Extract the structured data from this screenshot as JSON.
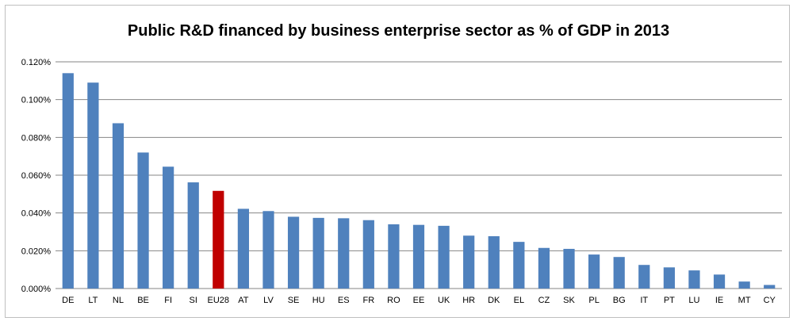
{
  "chart_data": {
    "type": "bar",
    "title": "Public R&D financed by business enterprise sector as % of GDP in 2013",
    "xlabel": "",
    "ylabel": "",
    "ylim": [
      0,
      0.12
    ],
    "yticks": [
      "0.000%",
      "0.020%",
      "0.040%",
      "0.060%",
      "0.080%",
      "0.100%",
      "0.120%"
    ],
    "grid": true,
    "legend": "none",
    "categories": [
      "DE",
      "LT",
      "NL",
      "BE",
      "FI",
      "SI",
      "EU28",
      "AT",
      "LV",
      "SE",
      "HU",
      "ES",
      "FR",
      "RO",
      "EE",
      "UK",
      "HR",
      "DK",
      "EL",
      "CZ",
      "SK",
      "PL",
      "BG",
      "IT",
      "PT",
      "LU",
      "IE",
      "MT",
      "CY"
    ],
    "values": [
      0.114,
      0.109,
      0.0875,
      0.072,
      0.0645,
      0.0562,
      0.0517,
      0.0422,
      0.041,
      0.038,
      0.0374,
      0.0372,
      0.0362,
      0.034,
      0.0337,
      0.0332,
      0.028,
      0.0277,
      0.0247,
      0.0215,
      0.021,
      0.018,
      0.0167,
      0.0125,
      0.0112,
      0.0096,
      0.0074,
      0.0037,
      0.0019
    ],
    "colors": {
      "default": "#4f81bd",
      "highlight": "#c00000",
      "highlight_category": "EU28",
      "gridline": "#868686"
    }
  }
}
